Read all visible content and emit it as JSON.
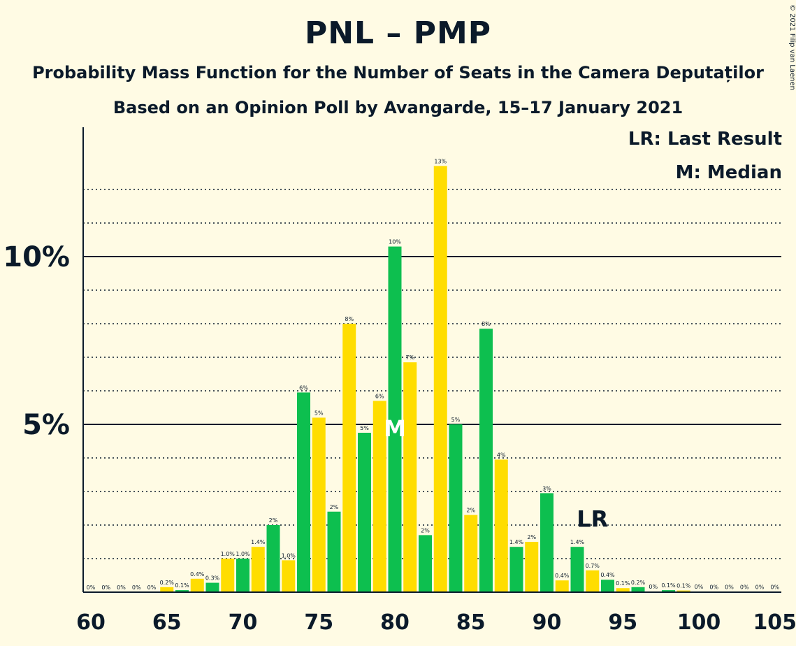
{
  "title": "PNL – PMP",
  "subtitle": "Probability Mass Function for the Number of Seats in the Camera Deputaților",
  "source": "Based on an Opinion Poll by Avangarde, 15–17 January 2021",
  "copyright": "© 2021 Filip van Laenen",
  "legend": {
    "last_result": "LR: Last Result",
    "median": "M: Median"
  },
  "colors": {
    "background": "#fffbe4",
    "green": "#0dbf4f",
    "yellow": "#ffdd00",
    "text": "#0b1a2a"
  },
  "chart_data": {
    "type": "bar",
    "x": [
      60,
      61,
      62,
      63,
      64,
      65,
      66,
      67,
      68,
      69,
      70,
      71,
      72,
      73,
      74,
      75,
      76,
      77,
      78,
      79,
      80,
      81,
      82,
      83,
      84,
      85,
      86,
      87,
      88,
      89,
      90,
      91,
      92,
      93,
      94,
      95,
      96,
      97,
      98,
      99,
      100,
      101,
      102,
      103,
      104,
      105
    ],
    "values": [
      0,
      0,
      0,
      0,
      0,
      0.15,
      0.06,
      0.4,
      0.28,
      1.0,
      1.0,
      1.35,
      2.0,
      0.95,
      5.95,
      5.2,
      2.4,
      8.0,
      4.75,
      5.7,
      10.3,
      6.85,
      1.7,
      12.7,
      5.0,
      2.3,
      7.85,
      3.95,
      1.35,
      1.5,
      2.95,
      0.35,
      1.35,
      0.65,
      0.37,
      0.12,
      0.15,
      0.02,
      0.06,
      0.05,
      0.02,
      0.01,
      0.01,
      0.01,
      0.01,
      0.01
    ],
    "labels": [
      "0%",
      "0%",
      "0%",
      "0%",
      "0%",
      "0.2%",
      "0.1%",
      "0.4%",
      "0.3%",
      "1.0%",
      "1.0%",
      "1.4%",
      "2%",
      "1.0%",
      "6%",
      "5%",
      "2%",
      "8%",
      "5%",
      "6%",
      "10%",
      "7%",
      "2%",
      "13%",
      "5%",
      "2%",
      "8%",
      "4%",
      "1.4%",
      "2%",
      "3%",
      "0.4%",
      "1.4%",
      "0.7%",
      "0.4%",
      "0.1%",
      "0.2%",
      "0%",
      "0.1%",
      "0.1%",
      "0%",
      "0%",
      "0%",
      "0%",
      "0%",
      "0%"
    ],
    "x_ticks": [
      "60",
      "65",
      "70",
      "75",
      "80",
      "85",
      "90",
      "95",
      "100",
      "105"
    ],
    "y_ticks": [
      "5%",
      "10%"
    ],
    "ylim": [
      0,
      13.7
    ],
    "median_seat": 80,
    "median_marker": "M",
    "last_result_seat": 93,
    "last_result_marker": "LR",
    "bar_colors": [
      "green",
      "yellow"
    ]
  }
}
